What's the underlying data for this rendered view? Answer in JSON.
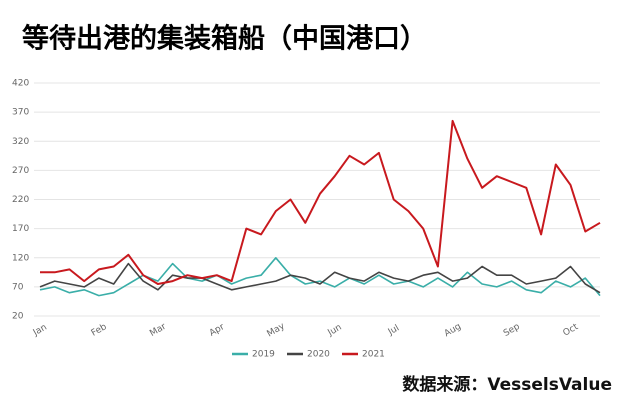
{
  "chart_data": {
    "type": "line",
    "title": "等待出港的集装箱船（中国港口）",
    "source": "数据来源：VesselsValue",
    "categories": [
      "Jan",
      null,
      null,
      null,
      "Feb",
      null,
      null,
      null,
      "Mar",
      null,
      null,
      null,
      "Apr",
      null,
      null,
      null,
      "May",
      null,
      null,
      null,
      "Jun",
      null,
      null,
      null,
      "Jul",
      null,
      null,
      null,
      "Aug",
      null,
      null,
      null,
      "Sep",
      null,
      null,
      null,
      "Oct",
      null,
      null
    ],
    "series": [
      {
        "name": "2019",
        "color": "#3aaea8",
        "values": [
          65,
          70,
          60,
          65,
          55,
          60,
          75,
          90,
          80,
          110,
          85,
          80,
          90,
          75,
          85,
          90,
          120,
          90,
          75,
          80,
          70,
          85,
          75,
          90,
          75,
          80,
          70,
          85,
          70,
          95,
          75,
          70,
          80,
          65,
          60,
          80,
          70,
          85,
          55
        ]
      },
      {
        "name": "2020",
        "color": "#444444",
        "values": [
          70,
          80,
          75,
          70,
          85,
          75,
          110,
          80,
          65,
          90,
          85,
          85,
          75,
          65,
          70,
          75,
          80,
          90,
          85,
          75,
          95,
          85,
          80,
          95,
          85,
          80,
          90,
          95,
          80,
          85,
          105,
          90,
          90,
          75,
          80,
          85,
          105,
          75,
          60
        ]
      },
      {
        "name": "2021",
        "color": "#c8191e",
        "values": [
          95,
          95,
          100,
          80,
          100,
          105,
          125,
          90,
          75,
          80,
          90,
          85,
          90,
          80,
          170,
          160,
          200,
          220,
          180,
          230,
          260,
          295,
          280,
          300,
          220,
          200,
          170,
          105,
          355,
          290,
          240,
          260,
          250,
          240,
          160,
          280,
          245,
          165,
          180
        ]
      }
    ],
    "ylim": [
      20,
      420
    ],
    "yticks": [
      20,
      70,
      120,
      170,
      220,
      270,
      320,
      370,
      420
    ],
    "grid": true,
    "legend": "bottom"
  }
}
